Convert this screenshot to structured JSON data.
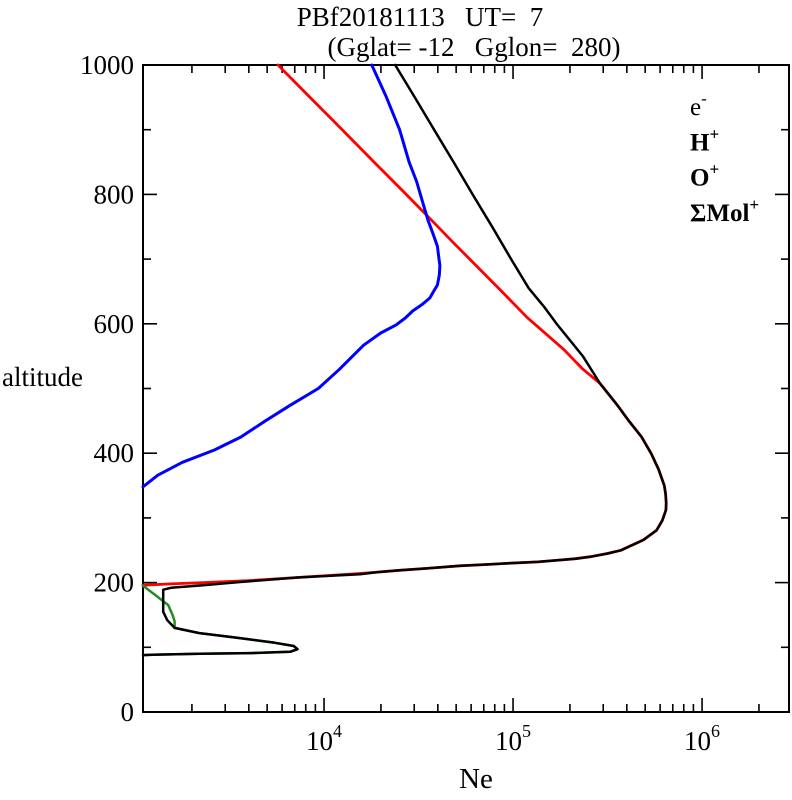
{
  "chart_data": {
    "type": "line",
    "title": "PBf20181113   UT=  7",
    "subtitle": "(Gglat= -12   Gglon=  280)",
    "xlabel": "Ne",
    "ylabel": "altitude",
    "x_scale": "log",
    "x_range": [
      1102,
      2884000
    ],
    "y_range": [
      0,
      1000
    ],
    "grid": false,
    "legend_position": "top-right",
    "x_major_ticks": [
      {
        "value": 10000,
        "base": "10",
        "exp": "4"
      },
      {
        "value": 100000,
        "base": "10",
        "exp": "5"
      },
      {
        "value": 1000000,
        "base": "10",
        "exp": "6"
      }
    ],
    "x_minor_mantissas": [
      2,
      3,
      4,
      5,
      6,
      7,
      8,
      9
    ],
    "y_major_ticks": [
      0,
      200,
      400,
      600,
      800,
      1000
    ],
    "y_minor_ticks": [
      100,
      300,
      500,
      700,
      900
    ],
    "legend_entries": [
      {
        "key": "electron",
        "base": "e",
        "sup": "-",
        "color": "#000000",
        "bold": false
      },
      {
        "key": "hydrogen-ion",
        "base": "H",
        "sup": "+",
        "color": "#0000ee",
        "bold": true
      },
      {
        "key": "oxygen-ion",
        "base": "O",
        "sup": "+",
        "color": "#ee0000",
        "bold": true
      },
      {
        "key": "molecular-ions",
        "base": "ΣMol",
        "sup": "+",
        "color": "#228b22",
        "bold": true
      }
    ],
    "series": [
      {
        "key": "oxygen-ion",
        "name": "O+",
        "color": "#ff0000",
        "width": 2.8,
        "points": [
          [
            5710,
            1000
          ],
          [
            8430,
            950
          ],
          [
            12470,
            900
          ],
          [
            18400,
            850
          ],
          [
            27200,
            800
          ],
          [
            40100,
            750
          ],
          [
            48100,
            726
          ],
          [
            59000,
            700
          ],
          [
            87100,
            650
          ],
          [
            118600,
            610
          ],
          [
            186000,
            560
          ],
          [
            234000,
            530
          ],
          [
            288000,
            508
          ],
          [
            355000,
            475
          ],
          [
            407000,
            451
          ],
          [
            479000,
            425
          ],
          [
            537000,
            400
          ],
          [
            589000,
            375
          ],
          [
            631000,
            350
          ],
          [
            641000,
            337
          ],
          [
            646000,
            323
          ],
          [
            644000,
            312
          ],
          [
            616000,
            296
          ],
          [
            575000,
            281
          ],
          [
            490000,
            266
          ],
          [
            372000,
            250
          ],
          [
            316000,
            245
          ],
          [
            257000,
            240
          ],
          [
            214000,
            237
          ],
          [
            178000,
            235
          ],
          [
            135000,
            232
          ],
          [
            95500,
            230
          ],
          [
            72400,
            228
          ],
          [
            52500,
            226
          ],
          [
            35000,
            222
          ],
          [
            25100,
            219
          ],
          [
            15500,
            214
          ],
          [
            7410,
            208
          ],
          [
            3980,
            203
          ],
          [
            2290,
            200
          ],
          [
            1550,
            198
          ],
          [
            1102,
            196
          ]
        ]
      },
      {
        "key": "molecular-ions",
        "name": "ΣMol+",
        "color": "#228b22",
        "width": 2.5,
        "points": [
          [
            1102,
            195
          ],
          [
            1290,
            180
          ],
          [
            1500,
            165
          ],
          [
            1580,
            150
          ],
          [
            1620,
            140
          ],
          [
            1620,
            130
          ],
          [
            2190,
            122
          ],
          [
            3630,
            114
          ],
          [
            5500,
            107
          ],
          [
            6920,
            102
          ],
          [
            7240,
            97
          ],
          [
            6610,
            93
          ],
          [
            4070,
            91
          ],
          [
            2190,
            90
          ],
          [
            1230,
            88.5
          ],
          [
            1102,
            88
          ]
        ]
      },
      {
        "key": "hydrogen-ion",
        "name": "H+",
        "color": "#0000ff",
        "width": 3,
        "points": [
          [
            17900,
            1000
          ],
          [
            21400,
            950
          ],
          [
            25100,
            900
          ],
          [
            28200,
            850
          ],
          [
            30900,
            820
          ],
          [
            33100,
            790
          ],
          [
            35500,
            760
          ],
          [
            37600,
            740
          ],
          [
            39800,
            720
          ],
          [
            40400,
            705
          ],
          [
            41000,
            690
          ],
          [
            40700,
            675
          ],
          [
            39800,
            660
          ],
          [
            38000,
            650
          ],
          [
            36300,
            640
          ],
          [
            33100,
            630
          ],
          [
            29500,
            620
          ],
          [
            26900,
            609
          ],
          [
            24000,
            598
          ],
          [
            20000,
            586
          ],
          [
            16200,
            567
          ],
          [
            12000,
            529
          ],
          [
            9330,
            500
          ],
          [
            6610,
            474
          ],
          [
            4900,
            450
          ],
          [
            3630,
            425
          ],
          [
            2630,
            405
          ],
          [
            1780,
            386
          ],
          [
            1320,
            366
          ],
          [
            1102,
            348
          ]
        ]
      },
      {
        "key": "electron",
        "name": "e-",
        "color": "#000000",
        "width": 2.5,
        "points": [
          [
            23800,
            1000
          ],
          [
            30200,
            950
          ],
          [
            38200,
            900
          ],
          [
            48500,
            850
          ],
          [
            61100,
            800
          ],
          [
            77600,
            750
          ],
          [
            97700,
            700
          ],
          [
            121000,
            655
          ],
          [
            147000,
            625
          ],
          [
            170000,
            600
          ],
          [
            234000,
            550
          ],
          [
            288000,
            508
          ],
          [
            355000,
            475
          ],
          [
            407000,
            451
          ],
          [
            479000,
            425
          ],
          [
            537000,
            400
          ],
          [
            589000,
            375
          ],
          [
            631000,
            350
          ],
          [
            641000,
            337
          ],
          [
            646000,
            323
          ],
          [
            644000,
            312
          ],
          [
            616000,
            296
          ],
          [
            575000,
            281
          ],
          [
            490000,
            266
          ],
          [
            372000,
            250
          ],
          [
            316000,
            245
          ],
          [
            257000,
            240
          ],
          [
            214000,
            237
          ],
          [
            178000,
            235
          ],
          [
            135000,
            232
          ],
          [
            95500,
            230
          ],
          [
            72400,
            228
          ],
          [
            52500,
            226
          ],
          [
            35000,
            222
          ],
          [
            25100,
            219
          ],
          [
            19000,
            216
          ],
          [
            15500,
            213
          ],
          [
            7410,
            208
          ],
          [
            3600,
            201
          ],
          [
            2290,
            196
          ],
          [
            1550,
            192
          ],
          [
            1410,
            189
          ],
          [
            1410,
            155
          ],
          [
            1480,
            142
          ],
          [
            1620,
            130
          ],
          [
            2190,
            122
          ],
          [
            3630,
            114
          ],
          [
            5500,
            107
          ],
          [
            6920,
            102
          ],
          [
            7240,
            97
          ],
          [
            6610,
            93
          ],
          [
            4070,
            91
          ],
          [
            2190,
            90
          ],
          [
            1230,
            88.5
          ],
          [
            1102,
            88
          ]
        ]
      }
    ]
  }
}
